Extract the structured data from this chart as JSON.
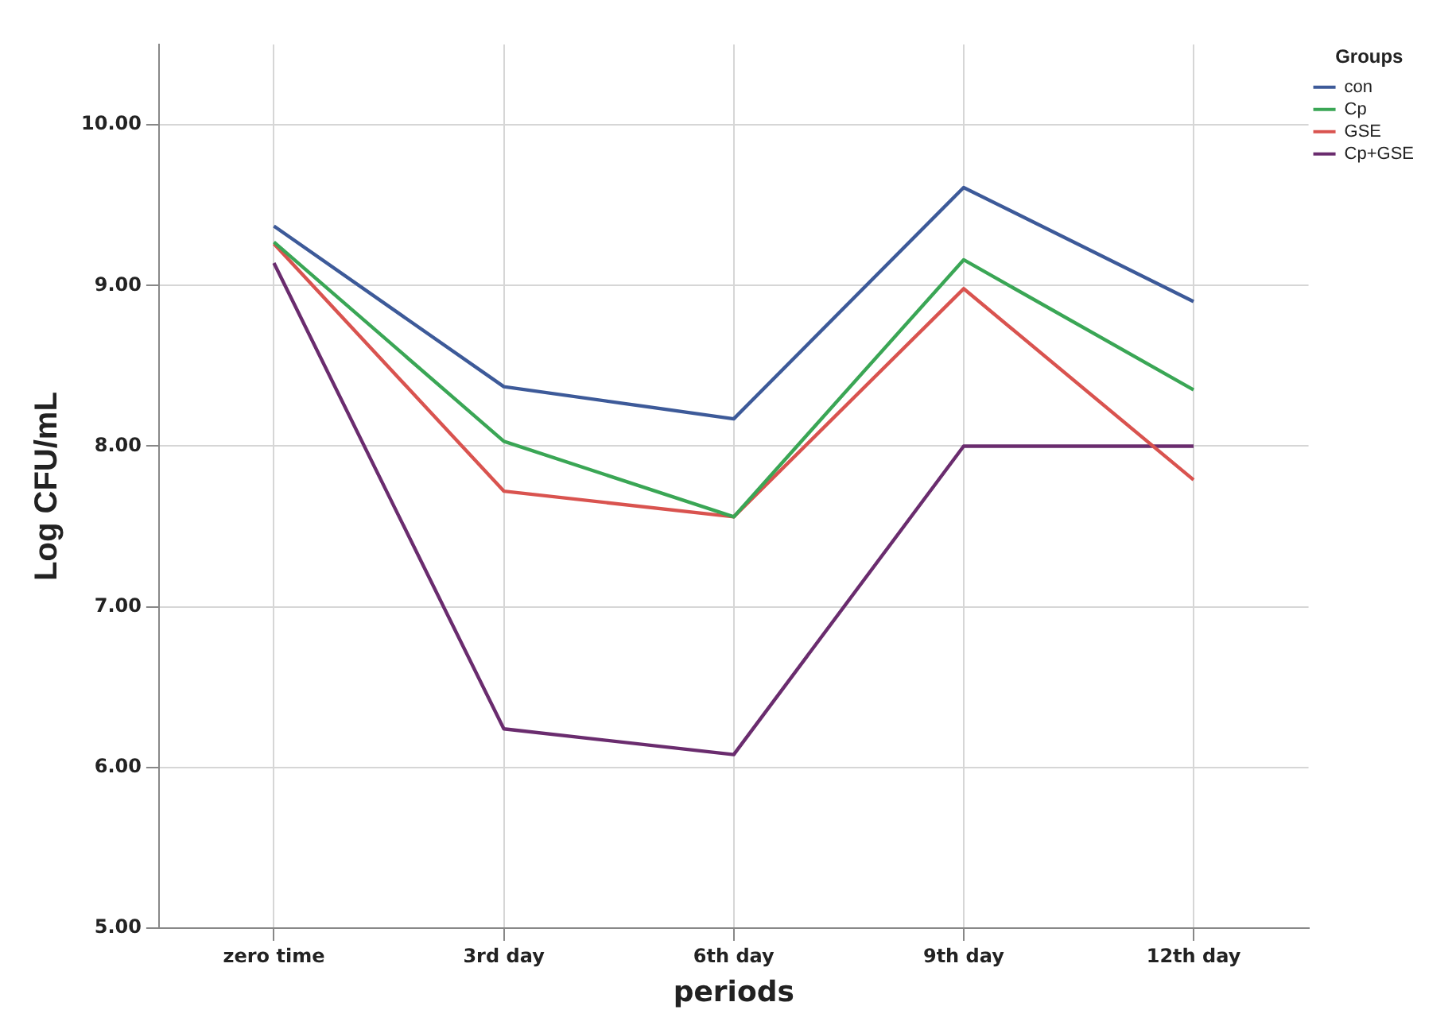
{
  "chart_data": {
    "type": "line",
    "xlabel": "periods",
    "ylabel": "Log CFU/mL",
    "legend_title": "Groups",
    "legend": "top right",
    "grid": true,
    "marker": "none",
    "line_style": "solid",
    "categories": [
      "zero time",
      "3rd day",
      "6th day",
      "9th day",
      "12th day"
    ],
    "ylim": [
      5,
      10.5
    ],
    "yticks": [
      {
        "value": 5,
        "label": "5.00"
      },
      {
        "value": 6,
        "label": "6.00"
      },
      {
        "value": 7,
        "label": "7.00"
      },
      {
        "value": 8,
        "label": "8.00"
      },
      {
        "value": 9,
        "label": "9.00"
      },
      {
        "value": 10,
        "label": "10.00"
      }
    ],
    "series": [
      {
        "name": "con",
        "color": "#3d5a99",
        "values": [
          9.37,
          8.37,
          8.17,
          9.61,
          8.9
        ]
      },
      {
        "name": "Cp",
        "color": "#3aa655",
        "values": [
          9.27,
          8.03,
          7.56,
          9.16,
          8.35
        ]
      },
      {
        "name": "GSE",
        "color": "#d9534f",
        "values": [
          9.26,
          7.72,
          7.56,
          8.98,
          7.79
        ]
      },
      {
        "name": "Cp+GSE",
        "color": "#6a2c6e",
        "values": [
          9.14,
          6.24,
          6.08,
          8.0,
          8.0
        ]
      }
    ]
  }
}
